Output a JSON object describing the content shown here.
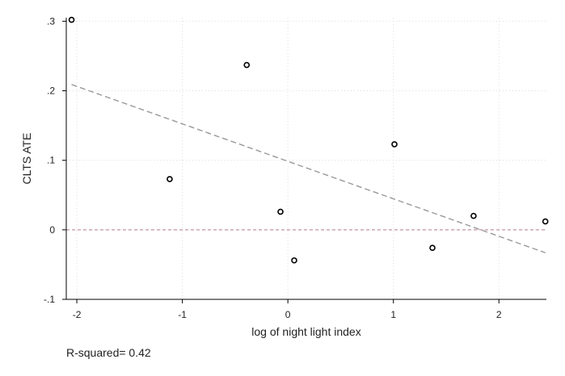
{
  "chart_data": {
    "type": "scatter",
    "title": "",
    "xlabel": "log of night light index",
    "ylabel": "CLTS ATE",
    "xlim": [
      -2.1,
      2.45
    ],
    "ylim": [
      -0.1,
      0.305
    ],
    "x_ticks": [
      -2,
      -1,
      0,
      1,
      2
    ],
    "x_tick_labels": [
      "-2",
      "-1",
      "0",
      "1",
      "2"
    ],
    "y_ticks": [
      -0.1,
      0,
      0.1,
      0.2,
      0.3
    ],
    "y_tick_labels": [
      "-.1",
      "0",
      ".1",
      ".2",
      ".3"
    ],
    "grid": true,
    "points": [
      {
        "x": -2.05,
        "y": 0.302
      },
      {
        "x": -1.12,
        "y": 0.073
      },
      {
        "x": -0.39,
        "y": 0.237
      },
      {
        "x": -0.07,
        "y": 0.026
      },
      {
        "x": 0.06,
        "y": -0.044
      },
      {
        "x": 1.01,
        "y": 0.123
      },
      {
        "x": 1.37,
        "y": -0.026
      },
      {
        "x": 1.76,
        "y": 0.02
      },
      {
        "x": 2.44,
        "y": 0.012
      }
    ],
    "fit_line": {
      "x": [
        -2.05,
        2.44
      ],
      "y": [
        0.209,
        -0.033
      ]
    },
    "reference_line_y": 0,
    "colors": {
      "points": "#000000",
      "fit": "#999999",
      "reference": "#c9a0ad",
      "grid": "#dddddd"
    }
  },
  "annotation": {
    "r_squared": "R-squared= 0.42"
  }
}
